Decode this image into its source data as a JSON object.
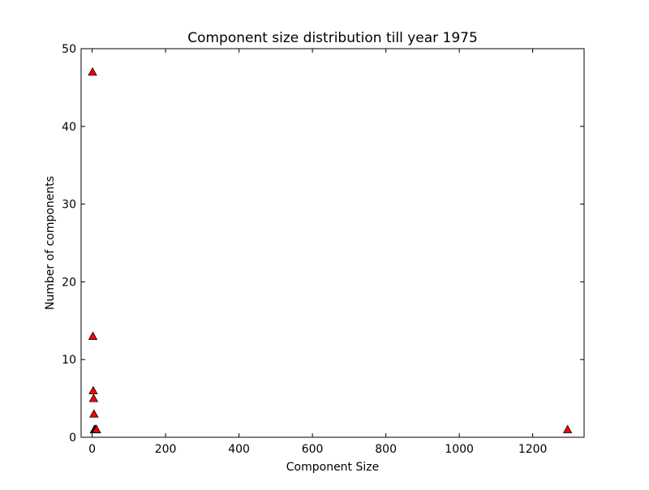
{
  "chart_data": {
    "type": "scatter",
    "title": "Component size distribution till year 1975",
    "xlabel": "Component Size",
    "ylabel": "Number of components",
    "xlim": [
      -30,
      1340
    ],
    "ylim": [
      0,
      50
    ],
    "xticks": [
      0,
      200,
      400,
      600,
      800,
      1000,
      1200
    ],
    "yticks": [
      0,
      10,
      20,
      30,
      40,
      50
    ],
    "grid": false,
    "marker": "triangle-up",
    "marker_color": "#ff0000",
    "marker_edge_color": "#000000",
    "points": [
      {
        "x": 1,
        "y": 47
      },
      {
        "x": 2,
        "y": 13
      },
      {
        "x": 3,
        "y": 6
      },
      {
        "x": 4,
        "y": 5
      },
      {
        "x": 5,
        "y": 3
      },
      {
        "x": 6,
        "y": 1
      },
      {
        "x": 7,
        "y": 1
      },
      {
        "x": 8,
        "y": 1
      },
      {
        "x": 9,
        "y": 1
      },
      {
        "x": 10,
        "y": 1
      },
      {
        "x": 11,
        "y": 1
      },
      {
        "x": 12,
        "y": 1
      },
      {
        "x": 1295,
        "y": 1
      }
    ]
  }
}
